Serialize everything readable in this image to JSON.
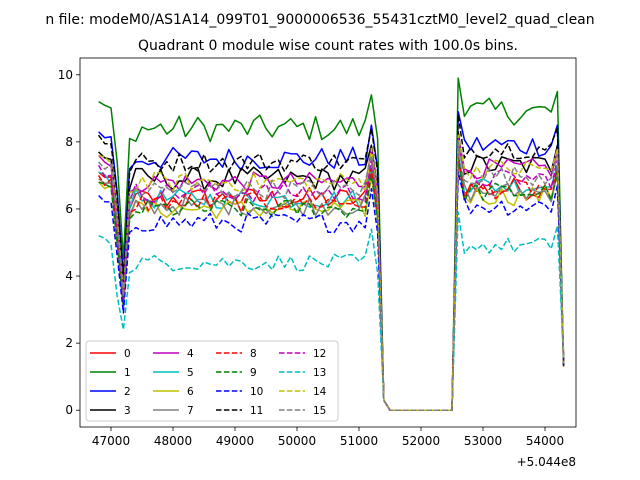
{
  "figure": {
    "suptitle": "n file: modeM0/AS1A14_099T01_9000006536_55431cztM0_level2_quad_clean",
    "title": "Quadrant 0 module wise count rates with 100.0s bins.",
    "x_offset_label": "+5.044e8"
  },
  "chart_data": {
    "type": "line",
    "title": "Quadrant 0 module wise count rates with 100.0s bins.",
    "xlabel": "",
    "ylabel": "",
    "x_offset": 504400000,
    "xlim": [
      46500,
      54500
    ],
    "ylim": [
      -0.5,
      10.5
    ],
    "xticks": [
      47000,
      48000,
      49000,
      50000,
      51000,
      52000,
      53000,
      54000
    ],
    "yticks": [
      0,
      2,
      4,
      6,
      8,
      10
    ],
    "xtick_labels": [
      "47000",
      "48000",
      "49000",
      "50000",
      "51000",
      "52000",
      "53000",
      "54000"
    ],
    "ytick_labels": [
      "0",
      "2",
      "4",
      "6",
      "8",
      "10"
    ],
    "grid": false,
    "legend_position": "lower-left",
    "legend_columns": 4,
    "bin_seconds": 100,
    "x_start": 46800,
    "x_step": 100,
    "n_points": 76,
    "segment1_last_index": 45,
    "gap_start_index": 46,
    "gap_end_index": 57,
    "segment2_first_index": 58,
    "series": [
      {
        "name": "0",
        "color": "#ff0000",
        "dash": "solid",
        "level1": 6.3,
        "level2": 6.6,
        "amp": 0.35,
        "dip": 3.3
      },
      {
        "name": "1",
        "color": "#008000",
        "dash": "solid",
        "level1": 8.4,
        "level2": 8.9,
        "amp": 0.4,
        "dip": 4.5
      },
      {
        "name": "2",
        "color": "#0000ff",
        "dash": "solid",
        "level1": 7.5,
        "level2": 7.9,
        "amp": 0.35,
        "dip": 4.0
      },
      {
        "name": "3",
        "color": "#000000",
        "dash": "solid",
        "level1": 6.9,
        "level2": 7.3,
        "amp": 0.35,
        "dip": 3.6
      },
      {
        "name": "4",
        "color": "#bf00bf",
        "dash": "solid",
        "level1": 6.8,
        "level2": 7.2,
        "amp": 0.3,
        "dip": 3.5
      },
      {
        "name": "5",
        "color": "#00bfbf",
        "dash": "solid",
        "level1": 6.3,
        "level2": 6.7,
        "amp": 0.3,
        "dip": 3.2
      },
      {
        "name": "6",
        "color": "#bfbf00",
        "dash": "solid",
        "level1": 6.0,
        "level2": 6.4,
        "amp": 0.3,
        "dip": 3.1
      },
      {
        "name": "7",
        "color": "#808080",
        "dash": "solid",
        "level1": 6.1,
        "level2": 6.5,
        "amp": 0.3,
        "dip": 3.0
      },
      {
        "name": "8",
        "color": "#ff0000",
        "dash": "dashed",
        "level1": 6.2,
        "level2": 6.6,
        "amp": 0.3,
        "dip": 3.2
      },
      {
        "name": "9",
        "color": "#008000",
        "dash": "dashed",
        "level1": 6.0,
        "level2": 6.5,
        "amp": 0.3,
        "dip": 3.1
      },
      {
        "name": "10",
        "color": "#0000ff",
        "dash": "dashed",
        "level1": 5.6,
        "level2": 6.1,
        "amp": 0.3,
        "dip": 2.9
      },
      {
        "name": "11",
        "color": "#000000",
        "dash": "dashed",
        "level1": 7.4,
        "level2": 7.8,
        "amp": 0.3,
        "dip": 3.8
      },
      {
        "name": "12",
        "color": "#bf00bf",
        "dash": "dashed",
        "level1": 6.5,
        "level2": 6.9,
        "amp": 0.3,
        "dip": 3.3
      },
      {
        "name": "13",
        "color": "#00bfbf",
        "dash": "dashed",
        "level1": 4.4,
        "level2": 4.9,
        "amp": 0.25,
        "dip": 2.4
      },
      {
        "name": "14",
        "color": "#bfbf00",
        "dash": "dashed",
        "level1": 6.8,
        "level2": 7.2,
        "amp": 0.3,
        "dip": 3.5
      },
      {
        "name": "15",
        "color": "#808080",
        "dash": "dashed",
        "level1": 6.6,
        "level2": 7.0,
        "amp": 0.3,
        "dip": 3.4
      }
    ]
  }
}
